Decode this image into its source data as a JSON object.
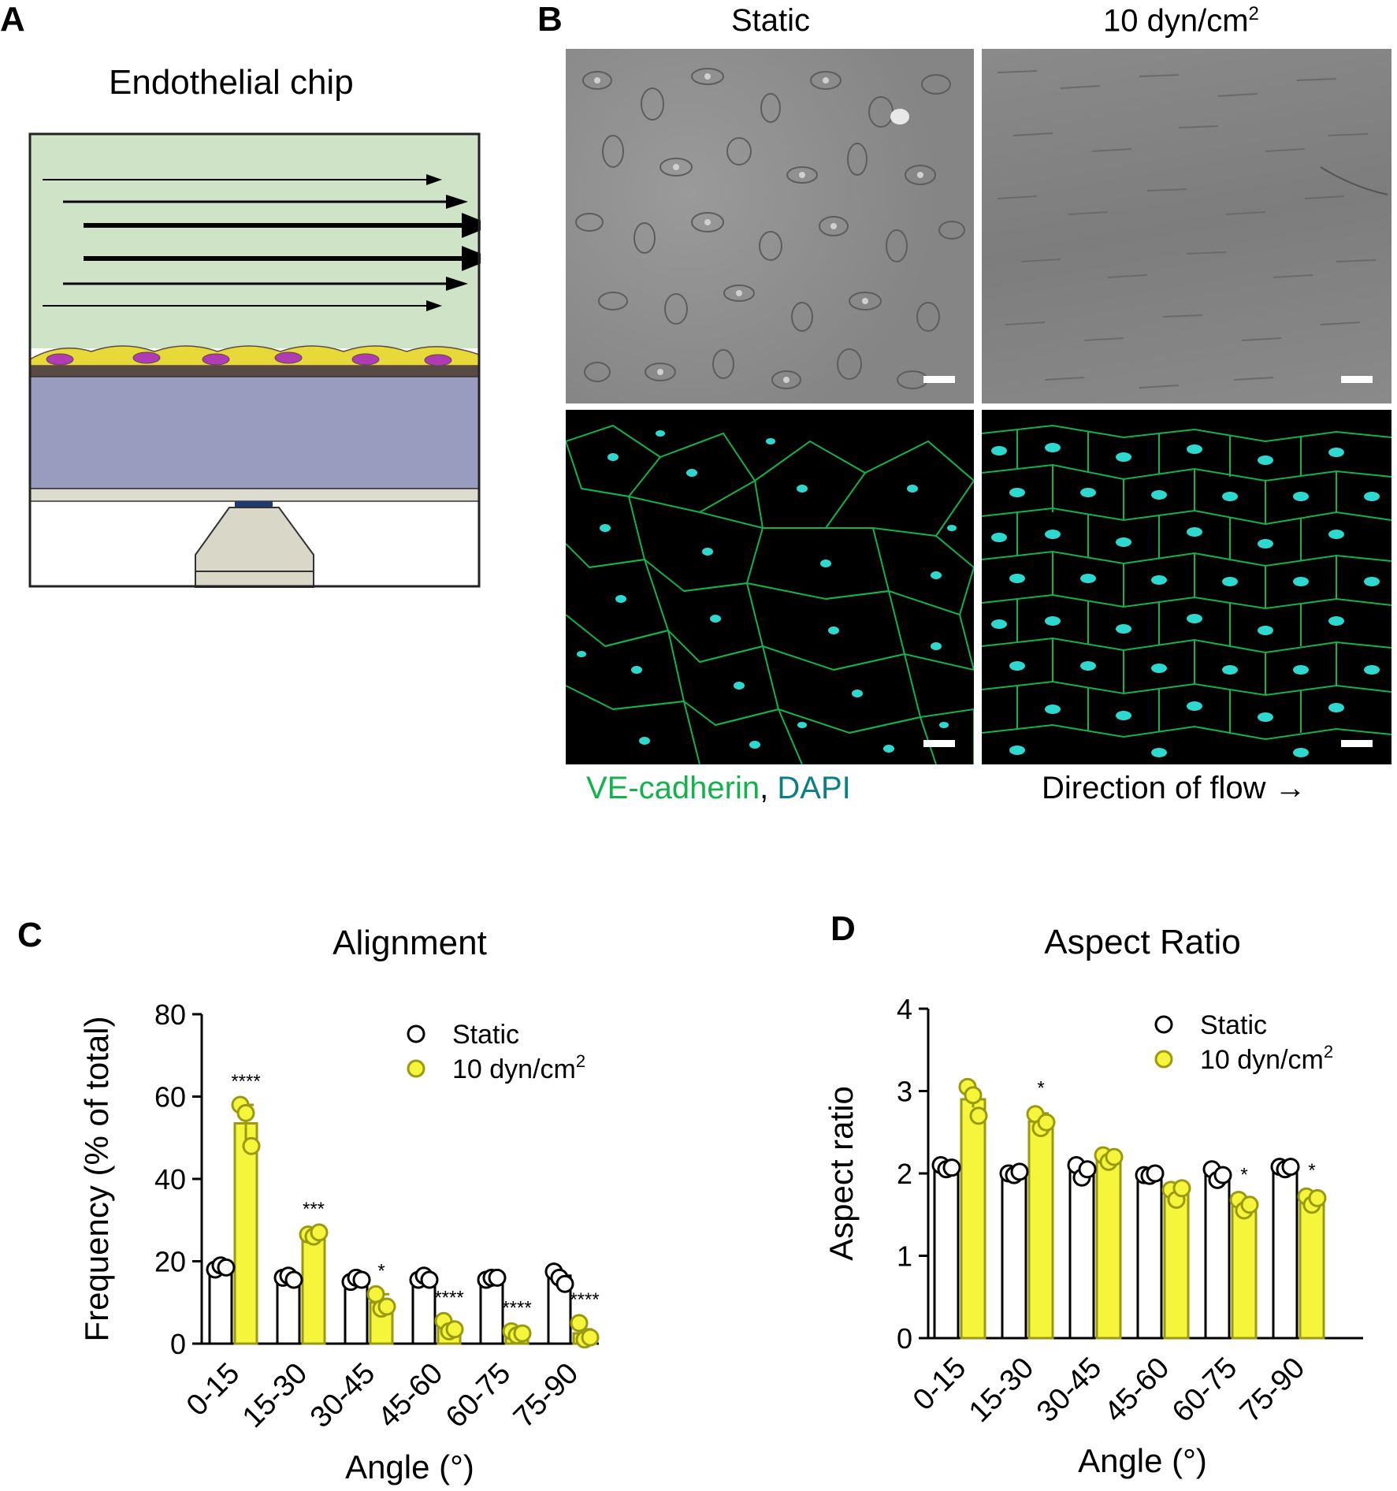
{
  "panels": {
    "a": {
      "label": "A",
      "title": "Endothelial chip",
      "colors": {
        "channel": "#cfe3c7",
        "membrane": "#5a4a44",
        "gel": "#9a9cbf",
        "cell": "#e7d93a",
        "nucleus": "#b03cb3",
        "objective": "#d9d7c8"
      }
    },
    "b": {
      "label": "B",
      "col_titles": [
        "Static",
        "10 dyn/cm"
      ],
      "col_title_sup": "2",
      "legend_ve": "VE-cadherin",
      "legend_sep": ",",
      "legend_dapi": "DAPI",
      "flow_label": "Direction of flow →",
      "colors": {
        "ve": "#11b34a",
        "dapi": "#0b7f86",
        "phase_bg": "#8f8f8f",
        "fluor_cell": "#2dd9cf"
      }
    },
    "c": {
      "label": "C"
    },
    "d": {
      "label": "D"
    }
  },
  "chart_data": [
    {
      "type": "bar",
      "title": "Alignment",
      "xlabel": "Angle (°)",
      "ylabel": "Frequency (% of total)",
      "ylim": [
        0,
        80
      ],
      "yticks": [
        0,
        20,
        40,
        60,
        80
      ],
      "categories": [
        "0-15",
        "15-30",
        "30-45",
        "45-60",
        "60-75",
        "75-90"
      ],
      "legend_position": "top-right",
      "series": [
        {
          "name": "Static",
          "color": "#ffffff",
          "edge": "#000000",
          "values": [
            18.5,
            16,
            15.5,
            15.8,
            15.8,
            16.5
          ],
          "points": [
            [
              18,
              19,
              18.5
            ],
            [
              16,
              16.5,
              15.5
            ],
            [
              15,
              16,
              15.5
            ],
            [
              15.5,
              16.5,
              15.5
            ],
            [
              15.5,
              16,
              16
            ],
            [
              17.5,
              16,
              14.5
            ]
          ]
        },
        {
          "name": "10 dyn/cm",
          "name_sup": "2",
          "color": "#f5f53c",
          "edge": "#9a9a10",
          "values": [
            53.5,
            26.5,
            10,
            4,
            2.5,
            2.5
          ],
          "errors": [
            4.5,
            0.5,
            2,
            1,
            0.5,
            1
          ],
          "points": [
            [
              58,
              56,
              48
            ],
            [
              26.5,
              26,
              27
            ],
            [
              12,
              8.5,
              9
            ],
            [
              5.5,
              3,
              3.5
            ],
            [
              3,
              2,
              2.5
            ],
            [
              5,
              1,
              1.5
            ]
          ]
        }
      ],
      "significance": [
        "****",
        "***",
        "*",
        "****",
        "****",
        "****"
      ]
    },
    {
      "type": "bar",
      "title": "Aspect Ratio",
      "xlabel": "Angle (°)",
      "ylabel": "Aspect ratio",
      "ylim": [
        0,
        4
      ],
      "yticks": [
        0,
        1,
        2,
        3,
        4
      ],
      "categories": [
        "0-15",
        "15-30",
        "30-45",
        "45-60",
        "60-75",
        "75-90"
      ],
      "legend_position": "top-right",
      "series": [
        {
          "name": "Static",
          "color": "#ffffff",
          "edge": "#000000",
          "values": [
            2.07,
            2.0,
            2.03,
            1.98,
            1.98,
            2.07
          ],
          "points": [
            [
              2.1,
              2.05,
              2.07
            ],
            [
              2.0,
              1.98,
              2.02
            ],
            [
              2.1,
              1.95,
              2.05
            ],
            [
              1.98,
              1.97,
              2.0
            ],
            [
              2.05,
              1.92,
              1.98
            ],
            [
              2.08,
              2.05,
              2.08
            ]
          ]
        },
        {
          "name": "10 dyn/cm",
          "name_sup": "2",
          "color": "#f5f53c",
          "edge": "#9a9a10",
          "values": [
            2.9,
            2.63,
            2.18,
            1.76,
            1.63,
            1.68
          ],
          "errors": [
            0.1,
            0.1,
            0.05,
            0.05,
            0.05,
            0.05
          ],
          "points": [
            [
              3.05,
              2.95,
              2.7
            ],
            [
              2.72,
              2.55,
              2.62
            ],
            [
              2.22,
              2.14,
              2.2
            ],
            [
              1.8,
              1.68,
              1.82
            ],
            [
              1.68,
              1.55,
              1.62
            ],
            [
              1.72,
              1.62,
              1.7
            ]
          ]
        }
      ],
      "significance": [
        "",
        "*",
        "",
        "",
        "*",
        "*"
      ]
    }
  ]
}
